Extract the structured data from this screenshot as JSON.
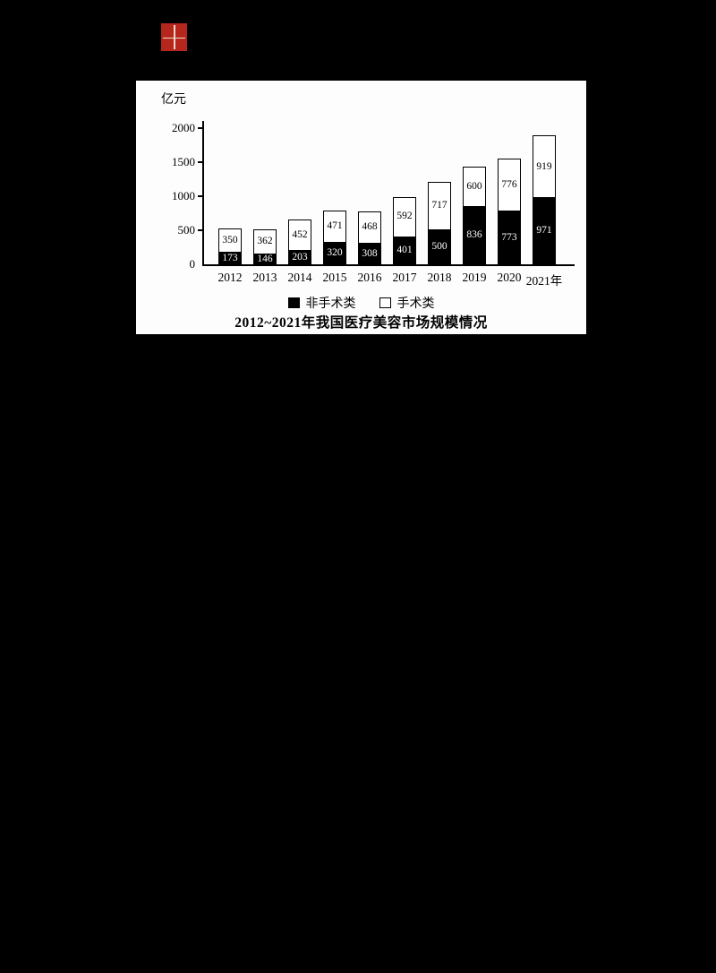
{
  "page": {
    "background": "#000000"
  },
  "logo": {
    "icon": "red-seal-stamp",
    "color": "#b5271d"
  },
  "chart_data": {
    "type": "bar",
    "stacked": true,
    "title": "2012~2021年我国医疗美容市场规模情况",
    "unit_label": "亿元",
    "xlabel": "",
    "ylabel": "亿元",
    "ylim": [
      0,
      2000
    ],
    "yticks": [
      0,
      500,
      1000,
      1500,
      2000
    ],
    "grid": false,
    "legend_position": "bottom",
    "categories": [
      "2012",
      "2013",
      "2014",
      "2015",
      "2016",
      "2017",
      "2018",
      "2019",
      "2020",
      "2021年"
    ],
    "series": [
      {
        "name": "非手术类",
        "key": "nonsurgical",
        "color": "#000000",
        "text_color": "#ffffff",
        "values": [
          173,
          146,
          203,
          320,
          308,
          401,
          500,
          836,
          773,
          971
        ]
      },
      {
        "name": "手术类",
        "key": "surgical",
        "color": "#ffffff",
        "text_color": "#000000",
        "values": [
          350,
          362,
          452,
          471,
          468,
          592,
          717,
          600,
          776,
          919
        ]
      }
    ]
  }
}
